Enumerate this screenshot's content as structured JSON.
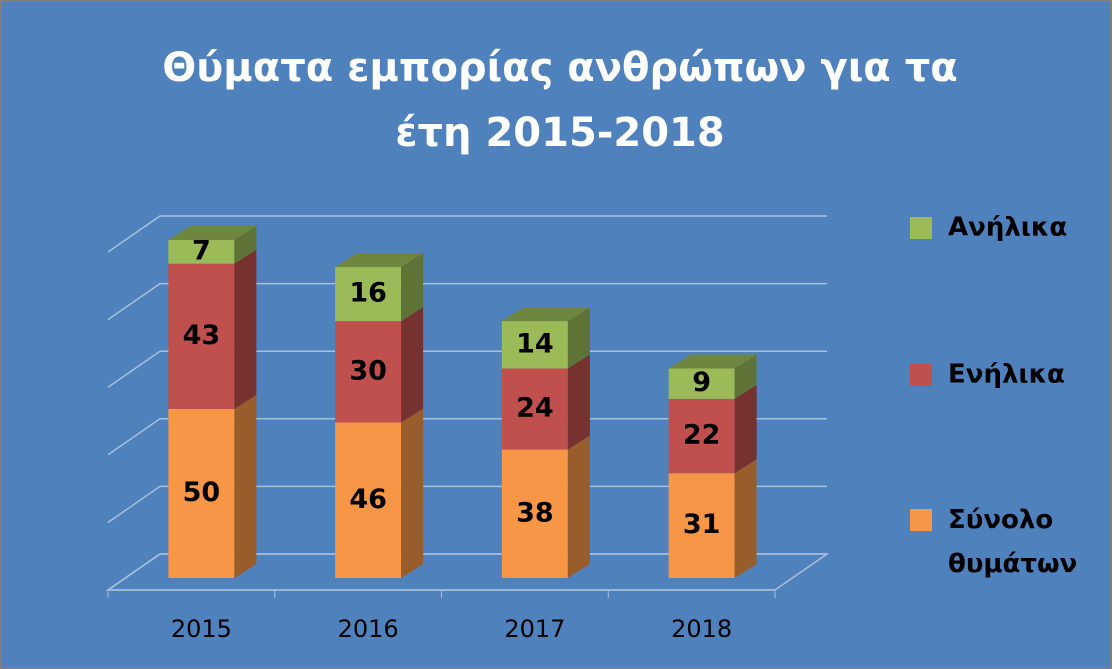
{
  "chart_data": {
    "type": "bar3d_stacked",
    "title": "Θύματα εμπορίας ανθρώπων για τα έτη 2015-2018",
    "categories": [
      "2015",
      "2016",
      "2017",
      "2018"
    ],
    "series": [
      {
        "name": "Σύνολο θυμάτων",
        "color": "#f79646",
        "values": [
          50,
          46,
          38,
          31
        ]
      },
      {
        "name": "Ενήλικα",
        "color": "#c0504d",
        "values": [
          43,
          30,
          24,
          22
        ]
      },
      {
        "name": "Ανήλικα",
        "color": "#9bbb59",
        "values": [
          7,
          16,
          14,
          9
        ]
      }
    ],
    "ylim": [
      0,
      100
    ],
    "yticks": [
      0,
      20,
      40,
      60,
      80,
      100
    ],
    "grid": true,
    "legend": "right"
  }
}
